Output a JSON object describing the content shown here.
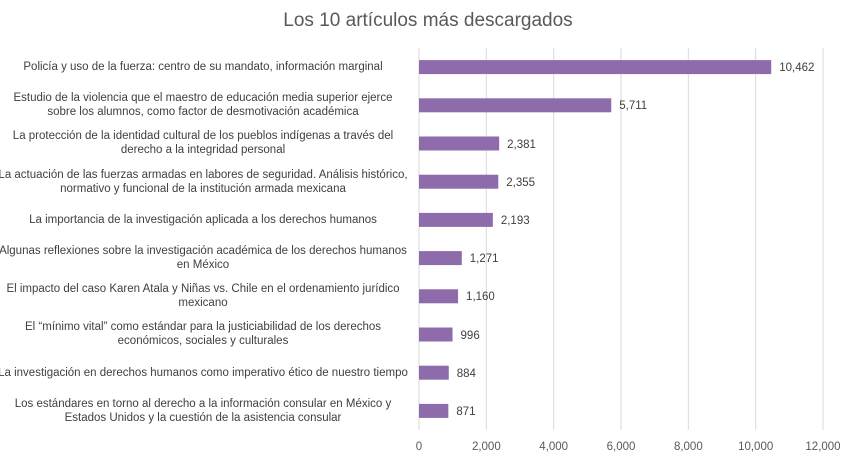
{
  "chart_data": {
    "type": "bar",
    "orientation": "horizontal",
    "title": "Los 10 artículos más descargados",
    "xlabel": "",
    "ylabel": "",
    "xlim": [
      0,
      12000
    ],
    "xticks": [
      "0",
      "2,000",
      "4,000",
      "6,000",
      "8,000",
      "10,000",
      "12,000"
    ],
    "grid": true,
    "legend": "none",
    "color": "#8e6bab",
    "categories": [
      "Policía y uso de la fuerza: centro de su mandato, información marginal",
      "Estudio de la violencia que el maestro de educación media superior ejerce sobre los alumnos, como factor de desmotivación académica",
      "La protección de la identidad cultural de los pueblos indígenas a través del derecho a la integridad personal",
      "La actuación de las fuerzas armadas en labores de seguridad. Análisis histórico, normativo y funcional de la institución armada mexicana",
      "La importancia de la investigación aplicada a los derechos humanos",
      "Algunas reflexiones sobre la investigación académica de los derechos humanos en México",
      "El impacto del caso Karen Atala y Niñas vs. Chile en el ordenamiento jurídico mexicano",
      "El “mínimo vital” como estándar para la justiciabilidad de los derechos económicos, sociales y culturales",
      "La investigación en derechos humanos como imperativo ético de nuestro tiempo",
      "Los estándares en torno al derecho a la información consular en México y Estados Unidos y la cuestión de la asistencia consular"
    ],
    "values": [
      10462,
      5711,
      2381,
      2355,
      2193,
      1271,
      1160,
      996,
      884,
      871
    ],
    "value_labels": [
      "10,462",
      "5,711",
      "2,381",
      "2,355",
      "2,193",
      "1,271",
      "1,160",
      "996",
      "884",
      "871"
    ]
  }
}
